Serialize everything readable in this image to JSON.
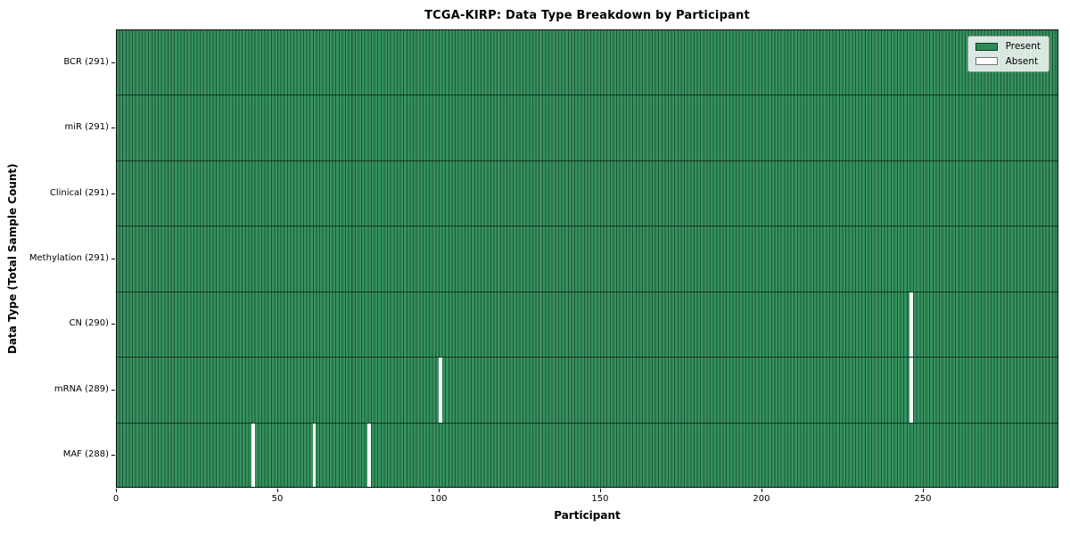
{
  "chart_data": {
    "type": "heatmap",
    "title": "TCGA-KIRP: Data Type Breakdown by Participant",
    "xlabel": "Participant",
    "ylabel": "Data Type (Total Sample Count)",
    "x_ticks": [
      0,
      50,
      100,
      150,
      200,
      250
    ],
    "xlim": [
      0,
      292
    ],
    "n_participants": 291,
    "grid": "row-separators-only",
    "legend_position": "upper right",
    "rows": [
      {
        "data_type": "BCR",
        "label": "BCR (291)",
        "present_count": 291,
        "absent_participants": []
      },
      {
        "data_type": "miR",
        "label": "miR (291)",
        "present_count": 291,
        "absent_participants": []
      },
      {
        "data_type": "Clinical",
        "label": "Clinical (291)",
        "present_count": 291,
        "absent_participants": []
      },
      {
        "data_type": "Methylation",
        "label": "Methylation (291)",
        "present_count": 291,
        "absent_participants": []
      },
      {
        "data_type": "CN",
        "label": "CN (290)",
        "present_count": 290,
        "absent_participants": [
          246
        ]
      },
      {
        "data_type": "mRNA",
        "label": "mRNA (289)",
        "present_count": 289,
        "absent_participants": [
          100,
          246
        ]
      },
      {
        "data_type": "MAF",
        "label": "MAF (288)",
        "present_count": 288,
        "absent_participants": [
          42,
          61,
          78
        ]
      }
    ],
    "legend": [
      {
        "label": "Present",
        "color": "#2e8b57"
      },
      {
        "label": "Absent",
        "color": "#ffffff"
      }
    ],
    "colors": {
      "present_fill": "#35925f",
      "bar_edge": "rgba(0,0,0,0.42)",
      "row_separator": "rgba(0,0,0,0.6)",
      "spine": "#0a0a0a",
      "legend_bg": "rgba(255,255,255,0.82)",
      "legend_border": "#9a9a9a",
      "swatch_edge": "rgba(0,0,0,0.55)"
    }
  }
}
